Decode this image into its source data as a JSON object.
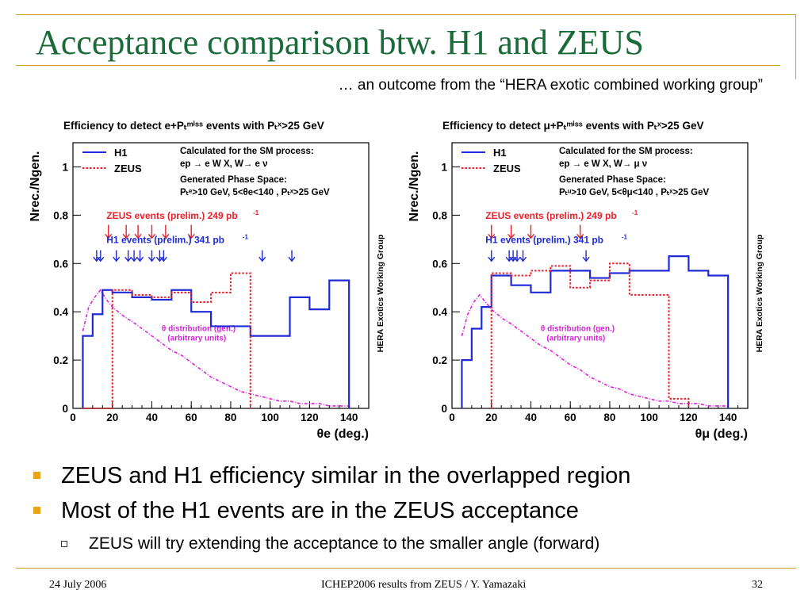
{
  "slide": {
    "title": "Acceptance comparison btw. H1 and ZEUS",
    "subtitle": "… an outcome from the “HERA exotic combined working group”",
    "bullets": [
      "ZEUS and H1 efficiency similar in the overlapped region",
      "Most of the H1 events are in the ZEUS acceptance"
    ],
    "subbullets": [
      "ZEUS will try extending the acceptance to the smaller angle (forward)"
    ],
    "footer": {
      "date": "24 July 2006",
      "center": "ICHEP2006 results from ZEUS / Y. Yamazaki",
      "page": "32"
    }
  },
  "chart_data": [
    {
      "type": "line",
      "title": "Efficiency to detect e+P_T^miss events with P_T^X>25 GeV",
      "xlabel": "θe (deg.)",
      "ylabel": "Nrec./Ngen.",
      "side_label": "HERA  Exotics Working Group",
      "xlim": [
        0,
        150
      ],
      "ylim": [
        0,
        1.1
      ],
      "xticks": [
        "0",
        "20",
        "40",
        "60",
        "80",
        "100",
        "120",
        "140"
      ],
      "yticks": [
        "0",
        "0.2",
        "0.4",
        "0.6",
        "0.8",
        "1"
      ],
      "legend_placement": "top-left",
      "bin_edges": [
        5,
        10,
        15,
        20,
        30,
        40,
        50,
        60,
        70,
        80,
        90,
        100,
        110,
        120,
        130,
        140
      ],
      "series": [
        {
          "name": "H1",
          "color": "#1f2ad6",
          "style": "solid",
          "values": [
            0.3,
            0.39,
            0.49,
            0.48,
            0.46,
            0.45,
            0.49,
            0.4,
            0.34,
            0.34,
            0.3,
            0.3,
            0.46,
            0.41,
            0.53
          ]
        },
        {
          "name": "ZEUS",
          "color": "#e8202a",
          "style": "dotted",
          "values": [
            0,
            0,
            0,
            0.49,
            0.47,
            0.46,
            0.48,
            0.44,
            0.48,
            0.56,
            null,
            null,
            null,
            null,
            null
          ]
        }
      ],
      "theta_distribution": {
        "label_line1": "θ distribution (gen.)",
        "label_line2": "(arbitrary units)",
        "color": "#e01ee0",
        "x": [
          5,
          8,
          11,
          14,
          17,
          20,
          23,
          26,
          30,
          35,
          40,
          45,
          50,
          55,
          60,
          65,
          70,
          75,
          80,
          85,
          90,
          95,
          100,
          105,
          110,
          115,
          120,
          125,
          130,
          135,
          140
        ],
        "values": [
          0.32,
          0.42,
          0.46,
          0.49,
          0.45,
          0.42,
          0.4,
          0.38,
          0.36,
          0.33,
          0.3,
          0.27,
          0.24,
          0.22,
          0.19,
          0.16,
          0.13,
          0.11,
          0.09,
          0.07,
          0.06,
          0.05,
          0.04,
          0.03,
          0.03,
          0.02,
          0.02,
          0.02,
          0.01,
          0.01,
          0.01
        ]
      },
      "zeus_events": {
        "label": "ZEUS events (prelim.) 249 pb",
        "sup": "-1",
        "color": "#e8202a",
        "x": [
          18,
          27,
          33,
          40,
          47,
          60
        ]
      },
      "h1_events": {
        "label": "H1 events (prelim.) 341 pb",
        "sup": "-1",
        "color": "#1f2ad6",
        "x": [
          12,
          14,
          22,
          28,
          31,
          34,
          40,
          44,
          46,
          96,
          111
        ]
      },
      "process_text": [
        "Calculated for the SM process:",
        "ep → e W X, W→ e ν",
        "Generated Phase Space:",
        "P_T^e>10 GeV, 5<θe<140 , P_T^X>25 GeV"
      ]
    },
    {
      "type": "line",
      "title": "Efficiency to detect μ+P_T^miss events with P_T^X>25 GeV",
      "xlabel": "θμ (deg.)",
      "ylabel": "Nrec./Ngen.",
      "side_label": "HERA  Exotics Working Group",
      "xlim": [
        0,
        150
      ],
      "ylim": [
        0,
        1.1
      ],
      "xticks": [
        "0",
        "20",
        "40",
        "60",
        "80",
        "100",
        "120",
        "140"
      ],
      "yticks": [
        "0",
        "0.2",
        "0.4",
        "0.6",
        "0.8",
        "1"
      ],
      "legend_placement": "top-left",
      "bin_edges": [
        5,
        10,
        15,
        20,
        30,
        40,
        50,
        60,
        70,
        80,
        90,
        100,
        110,
        120,
        130,
        140
      ],
      "series": [
        {
          "name": "H1",
          "color": "#1f2ad6",
          "style": "solid",
          "values": [
            0.2,
            0.33,
            0.42,
            0.55,
            0.51,
            0.48,
            0.57,
            0.57,
            0.54,
            0.56,
            0.57,
            0.57,
            0.63,
            0.57,
            0.55
          ]
        },
        {
          "name": "ZEUS",
          "color": "#e8202a",
          "style": "dotted",
          "values": [
            null,
            null,
            null,
            0.56,
            0.55,
            0.57,
            0.59,
            0.5,
            0.53,
            0.6,
            0.47,
            0.47,
            0.04,
            null,
            null
          ]
        }
      ],
      "theta_distribution": {
        "label_line1": "θ distribution (gen.)",
        "label_line2": "(arbitrary units)",
        "color": "#e01ee0",
        "x": [
          5,
          8,
          11,
          14,
          17,
          20,
          23,
          26,
          30,
          35,
          40,
          45,
          50,
          55,
          60,
          65,
          70,
          75,
          80,
          85,
          90,
          95,
          100,
          105,
          110,
          115,
          120,
          125,
          130,
          135,
          140
        ],
        "values": [
          0.3,
          0.39,
          0.44,
          0.47,
          0.44,
          0.41,
          0.39,
          0.37,
          0.35,
          0.32,
          0.29,
          0.26,
          0.24,
          0.21,
          0.18,
          0.16,
          0.13,
          0.11,
          0.09,
          0.08,
          0.06,
          0.05,
          0.04,
          0.03,
          0.03,
          0.02,
          0.02,
          0.02,
          0.01,
          0.01,
          0.01
        ]
      },
      "zeus_events": {
        "label": "ZEUS events (prelim.) 249 pb",
        "sup": "-1",
        "color": "#e8202a",
        "x": [
          20,
          30,
          40,
          65
        ]
      },
      "h1_events": {
        "label": "H1 events (prelim.) 341 pb",
        "sup": "-1",
        "color": "#1f2ad6",
        "x": [
          20,
          29,
          31,
          33,
          36,
          68
        ]
      },
      "process_text": [
        "Calculated for the SM process:",
        "ep → e W X, W→ μ ν",
        "Generated Phase Space:",
        "P_T^μ>10 GeV, 5<θμ<140 , P_T^X>25 GeV"
      ]
    }
  ]
}
